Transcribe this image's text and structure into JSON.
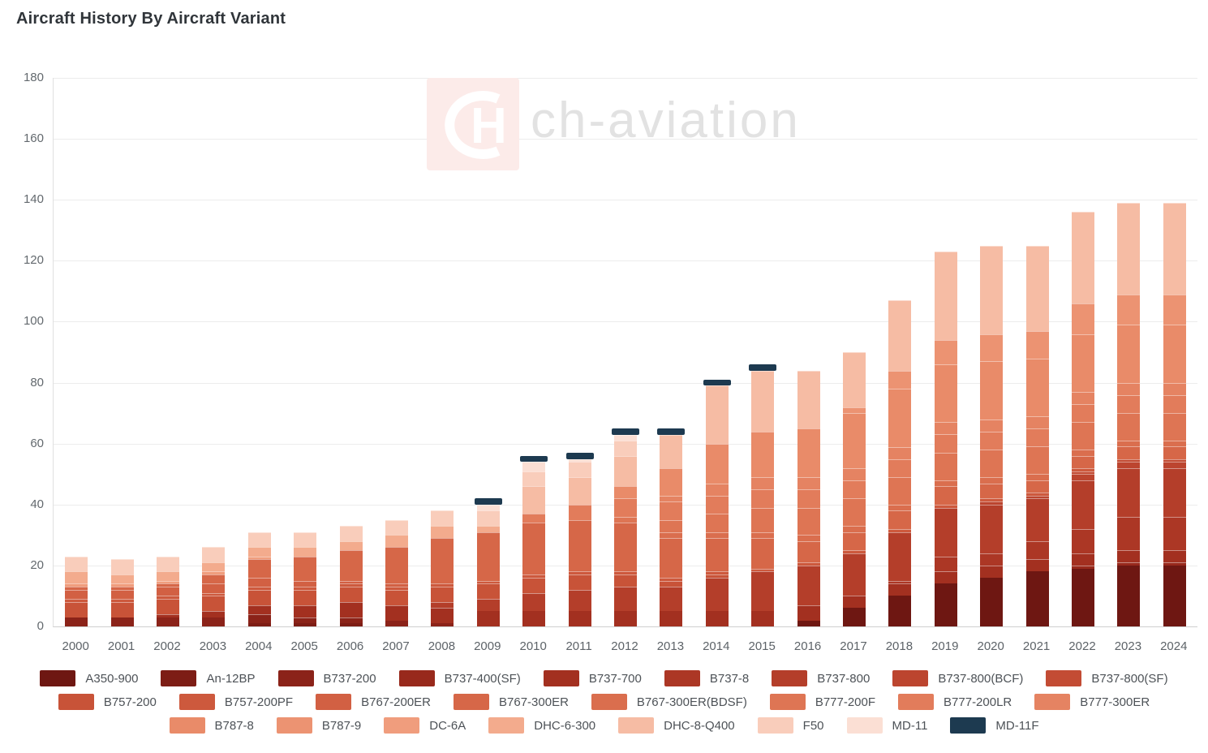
{
  "title": "Aircraft History By Aircraft Variant",
  "watermark": {
    "logo_text": "CH",
    "brand_text": "ch-aviation",
    "logo_bg": "#fcebe9"
  },
  "axis": {
    "label_color": "#5d6368",
    "grid_color": "#ececec"
  },
  "chart_data": {
    "type": "bar",
    "stacked": true,
    "title": "Aircraft History By Aircraft Variant",
    "xlabel": "",
    "ylabel": "",
    "x": [
      2000,
      2001,
      2002,
      2003,
      2004,
      2005,
      2006,
      2007,
      2008,
      2009,
      2010,
      2011,
      2012,
      2013,
      2014,
      2015,
      2016,
      2017,
      2018,
      2019,
      2020,
      2021,
      2022,
      2023,
      2024
    ],
    "ylim": [
      0,
      180
    ],
    "ytick_step": 20,
    "grid": true,
    "legend_position": "bottom",
    "legend_rows": [
      9,
      8,
      8
    ],
    "totals": [
      23,
      22,
      23,
      26,
      31,
      31,
      33,
      35,
      38,
      42,
      56,
      57,
      65,
      65,
      81,
      86,
      84,
      90,
      107,
      123,
      125,
      125,
      136,
      139,
      139
    ],
    "series": [
      {
        "name": "A350-900",
        "color": "#6e1712",
        "values": [
          0,
          0,
          0,
          0,
          0,
          0,
          0,
          0,
          0,
          0,
          0,
          0,
          0,
          0,
          0,
          0,
          2,
          6,
          10,
          14,
          16,
          18,
          19,
          20,
          20
        ]
      },
      {
        "name": "An-12BP",
        "color": "#7d1d15",
        "values": [
          0,
          0,
          0,
          0,
          1,
          1,
          1,
          0,
          0,
          0,
          0,
          0,
          0,
          0,
          0,
          0,
          0,
          0,
          0,
          0,
          0,
          0,
          0,
          0,
          0
        ]
      },
      {
        "name": "B737-200",
        "color": "#8b2319",
        "values": [
          3,
          3,
          3,
          3,
          3,
          2,
          2,
          2,
          1,
          0,
          0,
          0,
          0,
          0,
          0,
          0,
          0,
          0,
          0,
          0,
          0,
          0,
          0,
          0,
          0
        ]
      },
      {
        "name": "B737-400(SF)",
        "color": "#98291c",
        "values": [
          0,
          0,
          0,
          0,
          0,
          0,
          0,
          0,
          0,
          0,
          0,
          0,
          0,
          0,
          0,
          0,
          0,
          0,
          0,
          0,
          0,
          0,
          1,
          1,
          1
        ]
      },
      {
        "name": "B737-700",
        "color": "#a33020",
        "values": [
          0,
          0,
          1,
          2,
          3,
          4,
          5,
          5,
          5,
          5,
          5,
          5,
          5,
          5,
          5,
          5,
          5,
          4,
          4,
          4,
          4,
          4,
          4,
          4,
          4
        ]
      },
      {
        "name": "B737-8",
        "color": "#ac3725",
        "values": [
          0,
          0,
          0,
          0,
          0,
          0,
          0,
          0,
          0,
          0,
          0,
          0,
          0,
          0,
          0,
          0,
          0,
          0,
          1,
          5,
          4,
          6,
          8,
          11,
          11
        ]
      },
      {
        "name": "B737-800",
        "color": "#b43e2a",
        "values": [
          0,
          0,
          0,
          0,
          0,
          0,
          0,
          0,
          2,
          4,
          6,
          7,
          8,
          8,
          11,
          13,
          13,
          14,
          16,
          16,
          16,
          14,
          16,
          16,
          16
        ]
      },
      {
        "name": "B737-800(BCF)",
        "color": "#bc452f",
        "values": [
          0,
          0,
          0,
          0,
          0,
          0,
          0,
          0,
          0,
          0,
          0,
          0,
          0,
          0,
          0,
          0,
          0,
          0,
          0,
          0,
          1,
          1,
          2,
          2,
          2
        ]
      },
      {
        "name": "B737-800(SF)",
        "color": "#c34c34",
        "values": [
          0,
          0,
          0,
          0,
          0,
          0,
          0,
          0,
          0,
          0,
          0,
          0,
          0,
          0,
          0,
          0,
          0,
          0,
          0,
          0,
          0,
          0,
          1,
          1,
          1
        ]
      },
      {
        "name": "B757-200",
        "color": "#c85338",
        "values": [
          5,
          5,
          5,
          5,
          5,
          5,
          5,
          5,
          5,
          5,
          5,
          5,
          4,
          2,
          1,
          0,
          0,
          0,
          0,
          0,
          0,
          0,
          0,
          0,
          0
        ]
      },
      {
        "name": "B757-200PF",
        "color": "#cd593d",
        "values": [
          1,
          1,
          1,
          1,
          1,
          1,
          1,
          1,
          1,
          1,
          1,
          1,
          1,
          1,
          1,
          1,
          1,
          1,
          1,
          1,
          1,
          1,
          1,
          0,
          0
        ]
      },
      {
        "name": "B767-200ER",
        "color": "#d26043",
        "values": [
          3,
          3,
          3,
          3,
          3,
          2,
          1,
          1,
          0,
          0,
          0,
          0,
          0,
          0,
          0,
          0,
          0,
          0,
          0,
          0,
          0,
          0,
          0,
          0,
          0
        ]
      },
      {
        "name": "B767-300ER",
        "color": "#d66748",
        "values": [
          1,
          1,
          1,
          3,
          6,
          8,
          10,
          12,
          15,
          16,
          17,
          17,
          16,
          13,
          11,
          10,
          7,
          6,
          6,
          6,
          5,
          4,
          4,
          4,
          4
        ]
      },
      {
        "name": "B767-300ER(BDSF)",
        "color": "#da6e4e",
        "values": [
          0,
          0,
          0,
          0,
          0,
          0,
          0,
          0,
          0,
          0,
          0,
          0,
          0,
          2,
          2,
          2,
          2,
          2,
          2,
          2,
          2,
          2,
          2,
          2,
          2
        ]
      },
      {
        "name": "B777-200F",
        "color": "#de7554",
        "values": [
          0,
          0,
          0,
          0,
          0,
          0,
          0,
          0,
          0,
          0,
          0,
          0,
          2,
          4,
          6,
          8,
          9,
          9,
          9,
          9,
          9,
          9,
          9,
          9,
          9
        ]
      },
      {
        "name": "B777-200LR",
        "color": "#e27c5b",
        "values": [
          0,
          0,
          0,
          0,
          0,
          0,
          0,
          0,
          0,
          0,
          3,
          5,
          6,
          6,
          6,
          6,
          6,
          6,
          6,
          6,
          6,
          6,
          6,
          6,
          6
        ]
      },
      {
        "name": "B777-300ER",
        "color": "#e58362",
        "values": [
          0,
          0,
          0,
          0,
          0,
          0,
          0,
          0,
          0,
          0,
          0,
          0,
          0,
          2,
          4,
          4,
          4,
          4,
          4,
          4,
          4,
          4,
          4,
          4,
          4
        ]
      },
      {
        "name": "B787-8",
        "color": "#e98b69",
        "values": [
          0,
          0,
          0,
          0,
          0,
          0,
          0,
          0,
          0,
          0,
          0,
          0,
          4,
          9,
          13,
          15,
          16,
          18,
          19,
          19,
          19,
          19,
          19,
          19,
          19
        ]
      },
      {
        "name": "B787-9",
        "color": "#ec9372",
        "values": [
          0,
          0,
          0,
          0,
          0,
          0,
          0,
          0,
          0,
          0,
          0,
          0,
          0,
          0,
          0,
          0,
          0,
          2,
          6,
          8,
          9,
          9,
          10,
          10,
          10
        ]
      },
      {
        "name": "DC-6A",
        "color": "#f09d7d",
        "values": [
          1,
          1,
          1,
          1,
          1,
          0,
          0,
          0,
          0,
          0,
          0,
          0,
          0,
          0,
          0,
          0,
          0,
          0,
          0,
          0,
          0,
          0,
          0,
          0,
          0
        ]
      },
      {
        "name": "DHC-6-300",
        "color": "#f3ab8d",
        "values": [
          4,
          3,
          3,
          3,
          3,
          3,
          3,
          4,
          4,
          2,
          0,
          0,
          0,
          0,
          0,
          0,
          0,
          0,
          0,
          0,
          0,
          0,
          0,
          0,
          0
        ]
      },
      {
        "name": "DHC-8-Q400",
        "color": "#f6bca4",
        "values": [
          0,
          0,
          0,
          0,
          0,
          0,
          0,
          0,
          0,
          0,
          9,
          9,
          10,
          11,
          19,
          20,
          19,
          18,
          23,
          29,
          29,
          28,
          30,
          30,
          30
        ]
      },
      {
        "name": "F50",
        "color": "#f9cdbb",
        "values": [
          5,
          5,
          5,
          5,
          5,
          5,
          5,
          5,
          5,
          5,
          5,
          5,
          5,
          0,
          0,
          0,
          0,
          0,
          0,
          0,
          0,
          0,
          0,
          0,
          0
        ]
      },
      {
        "name": "MD-11",
        "color": "#fbdfd4",
        "values": [
          0,
          0,
          0,
          0,
          0,
          0,
          0,
          0,
          0,
          2,
          3,
          1,
          2,
          0,
          0,
          0,
          0,
          0,
          0,
          0,
          0,
          0,
          0,
          0,
          0
        ]
      },
      {
        "name": "MD-11F",
        "color": "#1d3a50",
        "values": [
          0,
          0,
          0,
          0,
          0,
          0,
          0,
          0,
          0,
          2,
          2,
          2,
          2,
          2,
          2,
          2,
          0,
          0,
          0,
          0,
          0,
          0,
          0,
          0,
          0
        ]
      }
    ]
  }
}
